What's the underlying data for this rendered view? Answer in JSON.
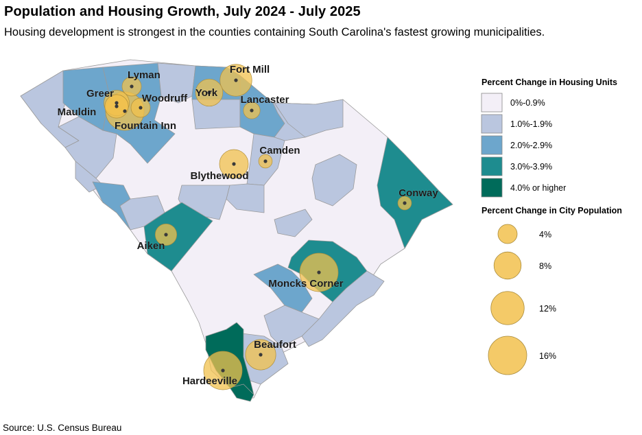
{
  "title": "Population and Housing Growth, July 2024 - July 2025",
  "subtitle": "Housing development is strongest in the counties containing South Carolina's fastest growing municipalities.",
  "source": "Source: U.S. Census Bureau",
  "housing_legend": {
    "title": "Percent Change in Housing Units",
    "classes": [
      {
        "label": "0%-0.9%",
        "color": "#f3eff7"
      },
      {
        "label": "1.0%-1.9%",
        "color": "#bac6df"
      },
      {
        "label": "2.0%-2.9%",
        "color": "#6da6cc"
      },
      {
        "label": "3.0%-3.9%",
        "color": "#1e8c8f"
      },
      {
        "label": "4.0% or higher",
        "color": "#006b5a"
      }
    ]
  },
  "population_legend": {
    "title": "Percent Change in City Population",
    "sizes": [
      {
        "label": "4%",
        "value": 4
      },
      {
        "label": "8%",
        "value": 8
      },
      {
        "label": "12%",
        "value": 12
      },
      {
        "label": "16%",
        "value": 16
      }
    ]
  },
  "bubble_color": "#f2c14e",
  "cities": [
    {
      "name": "Lyman",
      "pct": 4
    },
    {
      "name": "Greer",
      "pct": 7
    },
    {
      "name": "Woodruff",
      "pct": 4
    },
    {
      "name": "Mauldin",
      "pct": 6
    },
    {
      "name": "Fountain Inn",
      "pct": 16
    },
    {
      "name": "York",
      "pct": 8
    },
    {
      "name": "Fort Mill",
      "pct": 11
    },
    {
      "name": "Lancaster",
      "pct": 3
    },
    {
      "name": "Camden",
      "pct": 2
    },
    {
      "name": "Blythewood",
      "pct": 9
    },
    {
      "name": "Conway",
      "pct": 2
    },
    {
      "name": "Aiken",
      "pct": 5
    },
    {
      "name": "Moncks Corner",
      "pct": 16
    },
    {
      "name": "Beaufort",
      "pct": 10
    },
    {
      "name": "Hardeeville",
      "pct": 16
    }
  ]
}
